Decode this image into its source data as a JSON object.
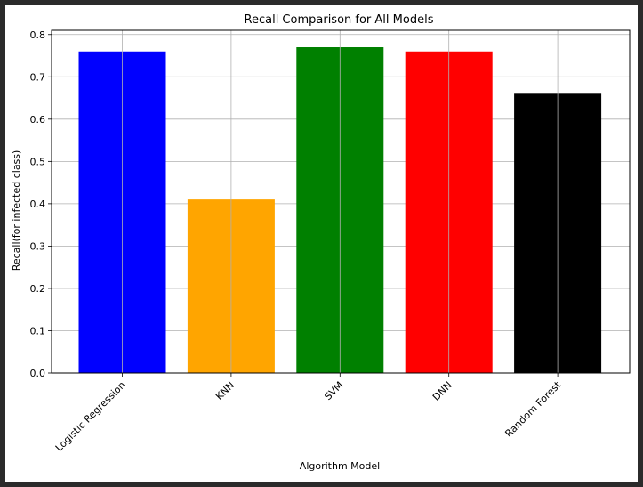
{
  "chart_data": {
    "type": "bar",
    "title": "Recall Comparison for All Models",
    "xlabel": "Algorithm Model",
    "ylabel": "Recall(for infected class)",
    "categories": [
      "Logistic Regression",
      "KNN",
      "SVM",
      "DNN",
      "Random Forest"
    ],
    "values": [
      0.76,
      0.41,
      0.77,
      0.76,
      0.66
    ],
    "colors": [
      "#0000ff",
      "#ffa500",
      "#008000",
      "#ff0000",
      "#000000"
    ],
    "ylim": [
      0,
      0.81
    ],
    "yticks": [
      "0.0",
      "0.1",
      "0.2",
      "0.3",
      "0.4",
      "0.5",
      "0.6",
      "0.7",
      "0.8"
    ],
    "grid": true,
    "legend": "none"
  }
}
